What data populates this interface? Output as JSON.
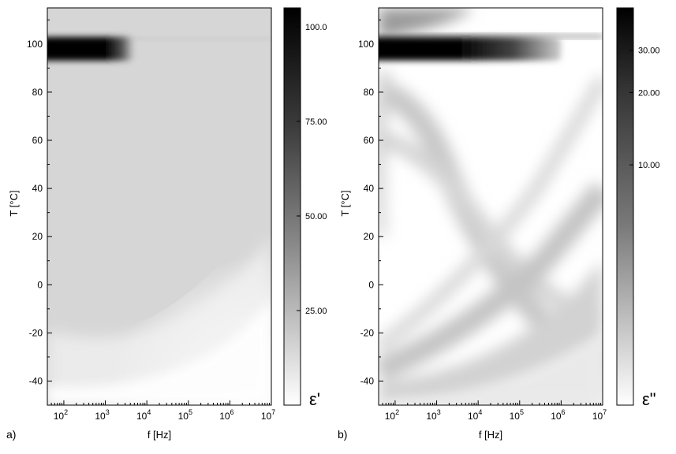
{
  "chart_data": [
    {
      "type": "heatmap",
      "panel_label": "a)",
      "xlabel": "f [Hz]",
      "ylabel": "T [°C]",
      "x_scale": "log",
      "xlim_hz": [
        40,
        10000000
      ],
      "x_ticks": [
        {
          "value": 100,
          "label_base": "10",
          "label_exp": "2"
        },
        {
          "value": 1000,
          "label_base": "10",
          "label_exp": "3"
        },
        {
          "value": 10000,
          "label_base": "10",
          "label_exp": "4"
        },
        {
          "value": 100000,
          "label_base": "10",
          "label_exp": "5"
        },
        {
          "value": 1000000,
          "label_base": "10",
          "label_exp": "6"
        },
        {
          "value": 10000000,
          "label_base": "10",
          "label_exp": "7"
        }
      ],
      "ylim": [
        -50,
        115
      ],
      "y_ticks": [
        {
          "value": 100,
          "label": "100"
        },
        {
          "value": 80,
          "label": "80"
        },
        {
          "value": 60,
          "label": "60"
        },
        {
          "value": 40,
          "label": "40"
        },
        {
          "value": 20,
          "label": "20"
        },
        {
          "value": 0,
          "label": "0"
        },
        {
          "value": -20,
          "label": "-20"
        },
        {
          "value": -40,
          "label": "-40"
        }
      ],
      "colorbar": {
        "label": "ε'",
        "scale": "linear",
        "range": [
          0,
          105
        ],
        "ticks": [
          {
            "value": 100,
            "label": "100.0"
          },
          {
            "value": 75,
            "label": "75.00"
          },
          {
            "value": 50,
            "label": "50.00"
          },
          {
            "value": 25,
            "label": "25.00"
          }
        ]
      },
      "colormap": "white-to-black",
      "features": [
        {
          "T": 98,
          "f_start": 40,
          "f_end": 5000,
          "value": 100
        }
      ],
      "background_level": 14
    },
    {
      "type": "heatmap",
      "panel_label": "b)",
      "xlabel": "f [Hz]",
      "ylabel": "T [°C]",
      "x_scale": "log",
      "xlim_hz": [
        40,
        10000000
      ],
      "x_ticks": [
        {
          "value": 100,
          "label_base": "10",
          "label_exp": "2"
        },
        {
          "value": 1000,
          "label_base": "10",
          "label_exp": "3"
        },
        {
          "value": 10000,
          "label_base": "10",
          "label_exp": "4"
        },
        {
          "value": 100000,
          "label_base": "10",
          "label_exp": "5"
        },
        {
          "value": 1000000,
          "label_base": "10",
          "label_exp": "6"
        },
        {
          "value": 10000000,
          "label_base": "10",
          "label_exp": "7"
        }
      ],
      "ylim": [
        -50,
        115
      ],
      "y_ticks": [
        {
          "value": 100,
          "label": "100"
        },
        {
          "value": 80,
          "label": "80"
        },
        {
          "value": 60,
          "label": "60"
        },
        {
          "value": 40,
          "label": "40"
        },
        {
          "value": 20,
          "label": "20"
        },
        {
          "value": 0,
          "label": "0"
        },
        {
          "value": -20,
          "label": "-20"
        },
        {
          "value": -40,
          "label": "-40"
        }
      ],
      "colorbar": {
        "label": "ε\"",
        "scale": "log",
        "range": [
          1,
          45
        ],
        "ticks": [
          {
            "value": 30,
            "label": "30.00"
          },
          {
            "value": 20,
            "label": "20.00"
          },
          {
            "value": 10,
            "label": "10.00"
          }
        ]
      },
      "colormap": "white-to-black",
      "features": [
        {
          "T": 98,
          "f_start": 40,
          "f_end": 1000000,
          "value": 40
        },
        {
          "T_start": -40,
          "T_end": 100,
          "description": "relaxation ridges curving to higher frequency with rising temperature"
        }
      ]
    }
  ]
}
